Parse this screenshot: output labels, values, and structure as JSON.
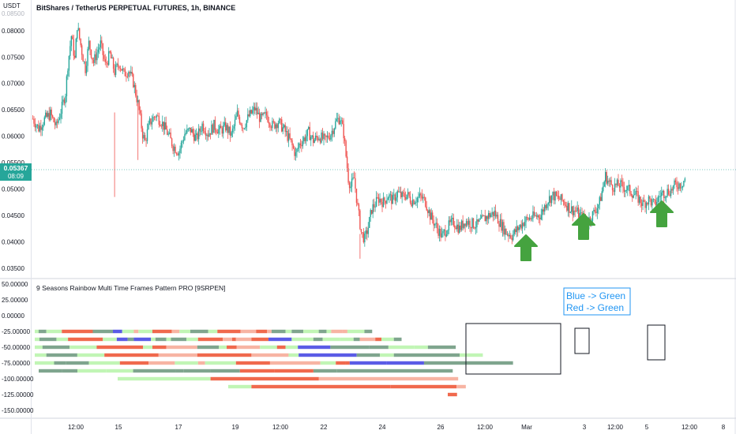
{
  "header": {
    "pair": "BitShares / TetherUS PERPETUAL FUTURES, 1h, BINANCE",
    "currency": "USDT",
    "top_tick": "0.08500"
  },
  "price_pane": {
    "last_price_label": "0.05367",
    "countdown": "08:09"
  },
  "indicator": {
    "name": "9 Seasons Rainbow Multi Time Frames Pattern PRO [9SRPEN]",
    "annotation_line1": "Blue -> Green",
    "annotation_line2": "Red -> Green"
  },
  "colors": {
    "up": "#26a69a",
    "down": "#ef5350",
    "dark_red": "#f0694d",
    "light_red": "#f7b4a3",
    "dark_green": "#7fa58e",
    "light_green": "#c1f5b5",
    "blue": "#5b5ce6",
    "arrow": "#45a33f",
    "annotation": "#2196f3"
  },
  "chart_data": [
    {
      "type": "candlestick",
      "title": "BitShares / TetherUS PERPETUAL FUTURES, 1h, BINANCE",
      "x_ticks": [
        "12:00",
        "15",
        "17",
        "19",
        "12:00",
        "22",
        "24",
        "26",
        "12:00",
        "Mar",
        "3",
        "12:00",
        "5",
        "12:00",
        "8"
      ],
      "y_ticks": [
        "0.08000",
        "0.07500",
        "0.07000",
        "0.06500",
        "0.06000",
        "0.05500",
        "0.05000",
        "0.04500",
        "0.04000",
        "0.03500"
      ],
      "ylim": [
        0.0335,
        0.0852
      ],
      "close_path": [
        [
          0,
          0.0633
        ],
        [
          5,
          0.0615
        ],
        [
          10,
          0.0632
        ],
        [
          15,
          0.0642
        ],
        [
          20,
          0.0618
        ],
        [
          25,
          0.0655
        ],
        [
          28,
          0.0682
        ],
        [
          30,
          0.0735
        ],
        [
          33,
          0.079
        ],
        [
          36,
          0.0745
        ],
        [
          38,
          0.081
        ],
        [
          42,
          0.076
        ],
        [
          45,
          0.0728
        ],
        [
          48,
          0.0776
        ],
        [
          52,
          0.074
        ],
        [
          56,
          0.0765
        ],
        [
          58,
          0.0775
        ],
        [
          62,
          0.0735
        ],
        [
          66,
          0.0755
        ],
        [
          70,
          0.0722
        ],
        [
          74,
          0.0738
        ],
        [
          78,
          0.0718
        ],
        [
          82,
          0.0725
        ],
        [
          86,
          0.0702
        ],
        [
          90,
          0.0662
        ],
        [
          94,
          0.0604
        ],
        [
          96,
          0.059
        ],
        [
          100,
          0.0625
        ],
        [
          105,
          0.064
        ],
        [
          110,
          0.0628
        ],
        [
          115,
          0.0607
        ],
        [
          120,
          0.0582
        ],
        [
          125,
          0.057
        ],
        [
          130,
          0.0605
        ],
        [
          135,
          0.0612
        ],
        [
          140,
          0.0595
        ],
        [
          145,
          0.0622
        ],
        [
          150,
          0.0605
        ],
        [
          155,
          0.062
        ],
        [
          160,
          0.061
        ],
        [
          165,
          0.0618
        ],
        [
          170,
          0.0602
        ],
        [
          175,
          0.0642
        ],
        [
          180,
          0.0618
        ],
        [
          185,
          0.0638
        ],
        [
          190,
          0.0652
        ],
        [
          195,
          0.0632
        ],
        [
          200,
          0.064
        ],
        [
          205,
          0.062
        ],
        [
          210,
          0.0628
        ],
        [
          215,
          0.0612
        ],
        [
          220,
          0.0592
        ],
        [
          225,
          0.0565
        ],
        [
          228,
          0.0585
        ],
        [
          232,
          0.0595
        ],
        [
          236,
          0.0607
        ],
        [
          240,
          0.0592
        ],
        [
          245,
          0.06
        ],
        [
          250,
          0.0592
        ],
        [
          255,
          0.0605
        ],
        [
          260,
          0.063
        ],
        [
          263,
          0.0635
        ],
        [
          266,
          0.0605
        ],
        [
          270,
          0.052
        ],
        [
          272,
          0.0505
        ],
        [
          275,
          0.052
        ],
        [
          278,
          0.0465
        ],
        [
          281,
          0.0418
        ],
        [
          284,
          0.0405
        ],
        [
          287,
          0.0428
        ],
        [
          290,
          0.0462
        ],
        [
          293,
          0.0472
        ],
        [
          296,
          0.0482
        ],
        [
          300,
          0.0475
        ],
        [
          304,
          0.0488
        ],
        [
          308,
          0.0478
        ],
        [
          312,
          0.0493
        ],
        [
          316,
          0.0485
        ],
        [
          320,
          0.049
        ],
        [
          324,
          0.0478
        ],
        [
          328,
          0.0482
        ],
        [
          332,
          0.0485
        ],
        [
          336,
          0.0476
        ],
        [
          340,
          0.045
        ],
        [
          345,
          0.043
        ],
        [
          350,
          0.041
        ],
        [
          355,
          0.0428
        ],
        [
          360,
          0.0438
        ],
        [
          365,
          0.0425
        ],
        [
          370,
          0.044
        ],
        [
          375,
          0.0435
        ],
        [
          380,
          0.0432
        ],
        [
          385,
          0.0442
        ],
        [
          390,
          0.045
        ],
        [
          395,
          0.0455
        ],
        [
          400,
          0.0435
        ],
        [
          405,
          0.0418
        ],
        [
          410,
          0.0412
        ],
        [
          415,
          0.0425
        ],
        [
          420,
          0.0438
        ],
        [
          425,
          0.0445
        ],
        [
          430,
          0.0448
        ],
        [
          435,
          0.0452
        ],
        [
          440,
          0.0478
        ],
        [
          445,
          0.0488
        ],
        [
          450,
          0.0482
        ],
        [
          455,
          0.0475
        ],
        [
          460,
          0.0462
        ],
        [
          465,
          0.0458
        ],
        [
          470,
          0.0445
        ],
        [
          475,
          0.044
        ],
        [
          480,
          0.0455
        ],
        [
          485,
          0.0475
        ],
        [
          490,
          0.0525
        ],
        [
          493,
          0.0512
        ],
        [
          497,
          0.0505
        ],
        [
          502,
          0.0508
        ],
        [
          507,
          0.0502
        ],
        [
          512,
          0.0495
        ],
        [
          517,
          0.0485
        ],
        [
          522,
          0.0472
        ],
        [
          527,
          0.048
        ],
        [
          532,
          0.047
        ],
        [
          537,
          0.049
        ],
        [
          542,
          0.0495
        ],
        [
          546,
          0.0498
        ],
        [
          550,
          0.0508
        ],
        [
          555,
          0.051
        ],
        [
          558,
          0.052
        ]
      ]
    },
    {
      "type": "heatmap",
      "title": "9 Seasons Rainbow Multi Time Frames Pattern PRO [9SRPEN]",
      "y_ticks": [
        "50.00000",
        "25.00000",
        "0.00000",
        "-25.00000",
        "-50.00000",
        "-75.00000",
        "-100.00000",
        "-125.00000",
        "-150.00000"
      ],
      "ylim": [
        -160,
        55
      ],
      "category_labels": [
        "dark_red",
        "light_red",
        "dark_green",
        "light_green",
        "blue"
      ],
      "rows": [
        {
          "y": -25,
          "start": 0,
          "segments": [
            [
              5,
              3
            ],
            [
              10,
              2
            ],
            [
              20,
              3
            ],
            [
              40,
              0
            ],
            [
              26,
              2
            ],
            [
              12,
              4
            ],
            [
              15,
              3
            ],
            [
              6,
              1
            ],
            [
              18,
              3
            ],
            [
              25,
              0
            ],
            [
              10,
              1
            ],
            [
              14,
              3
            ],
            [
              23,
              2
            ],
            [
              12,
              3
            ],
            [
              30,
              0
            ],
            [
              20,
              1
            ],
            [
              14,
              0
            ],
            [
              6,
              1
            ],
            [
              18,
              2
            ],
            [
              8,
              3
            ],
            [
              15,
              2
            ],
            [
              20,
              3
            ],
            [
              10,
              2
            ],
            [
              6,
              3
            ],
            [
              14,
              1
            ],
            [
              7,
              1
            ],
            [
              22,
              3
            ],
            [
              10,
              2
            ]
          ]
        },
        {
          "y": -37.5,
          "start": 0,
          "segments": [
            [
              6,
              3
            ],
            [
              22,
              2
            ],
            [
              15,
              3
            ],
            [
              45,
              0
            ],
            [
              18,
              3
            ],
            [
              14,
              4
            ],
            [
              8,
              2
            ],
            [
              22,
              4
            ],
            [
              6,
              3
            ],
            [
              14,
              2
            ],
            [
              6,
              3
            ],
            [
              20,
              2
            ],
            [
              15,
              3
            ],
            [
              32,
              0
            ],
            [
              12,
              1
            ],
            [
              5,
              0
            ],
            [
              20,
              1
            ],
            [
              22,
              0
            ],
            [
              30,
              4
            ],
            [
              28,
              3
            ],
            [
              12,
              2
            ],
            [
              22,
              3
            ],
            [
              18,
              3
            ],
            [
              8,
              2
            ],
            [
              20,
              1
            ],
            [
              8,
              0
            ],
            [
              16,
              3
            ],
            [
              10,
              2
            ]
          ]
        },
        {
          "y": -50,
          "start": 0,
          "segments": [
            [
              10,
              3
            ],
            [
              35,
              2
            ],
            [
              35,
              3
            ],
            [
              60,
              0
            ],
            [
              12,
              3
            ],
            [
              18,
              0
            ],
            [
              40,
              1
            ],
            [
              28,
              2
            ],
            [
              10,
              3
            ],
            [
              13,
              0
            ],
            [
              30,
              1
            ],
            [
              22,
              3
            ],
            [
              11,
              0
            ],
            [
              16,
              3
            ],
            [
              42,
              4
            ],
            [
              50,
              2
            ],
            [
              25,
              2
            ],
            [
              33,
              3
            ],
            [
              18,
              3
            ],
            [
              36,
              2
            ]
          ]
        },
        {
          "y": -62.5,
          "start": 0,
          "segments": [
            [
              15,
              3
            ],
            [
              40,
              2
            ],
            [
              35,
              3
            ],
            [
              70,
              0
            ],
            [
              50,
              1
            ],
            [
              70,
              0
            ],
            [
              48,
              1
            ],
            [
              13,
              3
            ],
            [
              75,
              4
            ],
            [
              30,
              2
            ],
            [
              18,
              3
            ],
            [
              85,
              2
            ],
            [
              30,
              3
            ]
          ]
        },
        {
          "y": -75,
          "start": 0,
          "segments": [
            [
              25,
              3
            ],
            [
              15,
              2
            ],
            [
              30,
              2
            ],
            [
              40,
              3
            ],
            [
              37,
              0
            ],
            [
              34,
              1
            ],
            [
              30,
              3
            ],
            [
              9,
              1
            ],
            [
              40,
              3
            ],
            [
              44,
              0
            ],
            [
              65,
              1
            ],
            [
              20,
              3
            ],
            [
              13,
              0
            ],
            [
              5,
              0
            ],
            [
              48,
              4
            ],
            [
              48,
              4
            ],
            [
              115,
              2
            ]
          ]
        },
        {
          "y": -87.5,
          "start": 5,
          "segments": [
            [
              30,
              2
            ],
            [
              20,
              2
            ],
            [
              37,
              3
            ],
            [
              35,
              3
            ],
            [
              55,
              2
            ],
            [
              10,
              2
            ],
            [
              35,
              2
            ],
            [
              38,
              2
            ],
            [
              45,
              0
            ],
            [
              50,
              0
            ],
            [
              30,
              2
            ],
            [
              40,
              2
            ],
            [
              110,
              2
            ]
          ]
        },
        {
          "y": -100,
          "start": 105,
          "segments": [
            [
              120,
              3
            ],
            [
              140,
              0
            ],
            [
              65,
              1
            ],
            [
              115,
              1
            ]
          ]
        },
        {
          "y": -112.5,
          "start": 245,
          "segments": [
            [
              30,
              3
            ],
            [
              180,
              0
            ],
            [
              85,
              0
            ],
            [
              12,
              1
            ]
          ]
        },
        {
          "y": -125,
          "start": 523,
          "segments": [
            [
              12,
              0
            ]
          ]
        }
      ],
      "annotations": [
        "Blue -> Green",
        "Red -> Green"
      ]
    }
  ]
}
